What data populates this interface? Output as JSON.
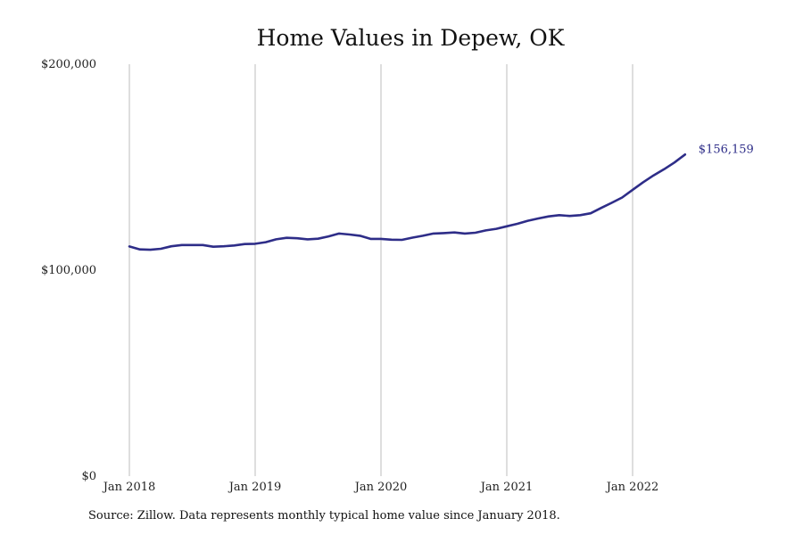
{
  "chart_data": {
    "type": "line",
    "title": "Home Values in Depew, OK",
    "xlabel": "",
    "ylabel": "",
    "y_ticks": [
      "$0",
      "$100,000",
      "$200,000"
    ],
    "y_tick_values": [
      0,
      100000,
      200000
    ],
    "ylim": [
      0,
      200000
    ],
    "x_ticks": [
      "Jan 2018",
      "Jan 2019",
      "Jan 2020",
      "Jan 2021",
      "Jan 2022"
    ],
    "x_tick_values": [
      "2018-01",
      "2019-01",
      "2020-01",
      "2021-01",
      "2022-01"
    ],
    "xlim": [
      "2018-01",
      "2022-12"
    ],
    "grid": "vertical",
    "end_label": "$156,159",
    "series": [
      {
        "color": "#2e2d88",
        "x": [
          "2018-01",
          "2018-02",
          "2018-03",
          "2018-04",
          "2018-05",
          "2018-06",
          "2018-07",
          "2018-08",
          "2018-09",
          "2018-10",
          "2018-11",
          "2018-12",
          "2019-01",
          "2019-02",
          "2019-03",
          "2019-04",
          "2019-05",
          "2019-06",
          "2019-07",
          "2019-08",
          "2019-09",
          "2019-10",
          "2019-11",
          "2019-12",
          "2020-01",
          "2020-02",
          "2020-03",
          "2020-04",
          "2020-05",
          "2020-06",
          "2020-07",
          "2020-08",
          "2020-09",
          "2020-10",
          "2020-11",
          "2020-12",
          "2021-01",
          "2021-02",
          "2021-03",
          "2021-04",
          "2021-05",
          "2021-06",
          "2021-07",
          "2021-08",
          "2021-09",
          "2021-10",
          "2021-11",
          "2021-12",
          "2022-01",
          "2022-02",
          "2022-03",
          "2022-04",
          "2022-05",
          "2022-06"
        ],
        "values": [
          111500,
          110100,
          109900,
          110400,
          111600,
          112200,
          112200,
          112200,
          111400,
          111600,
          112000,
          112700,
          112800,
          113600,
          115000,
          115700,
          115500,
          115000,
          115300,
          116400,
          117800,
          117300,
          116700,
          115200,
          115200,
          114800,
          114700,
          115800,
          116700,
          117800,
          118000,
          118300,
          117800,
          118200,
          119300,
          120100,
          121300,
          122500,
          124000,
          125100,
          126100,
          126700,
          126300,
          126700,
          127600,
          130200,
          132700,
          135300,
          139000,
          142700,
          146000,
          149000,
          152300,
          156159
        ]
      }
    ]
  },
  "source": "Source: Zillow. Data represents monthly typical home value since January 2018."
}
